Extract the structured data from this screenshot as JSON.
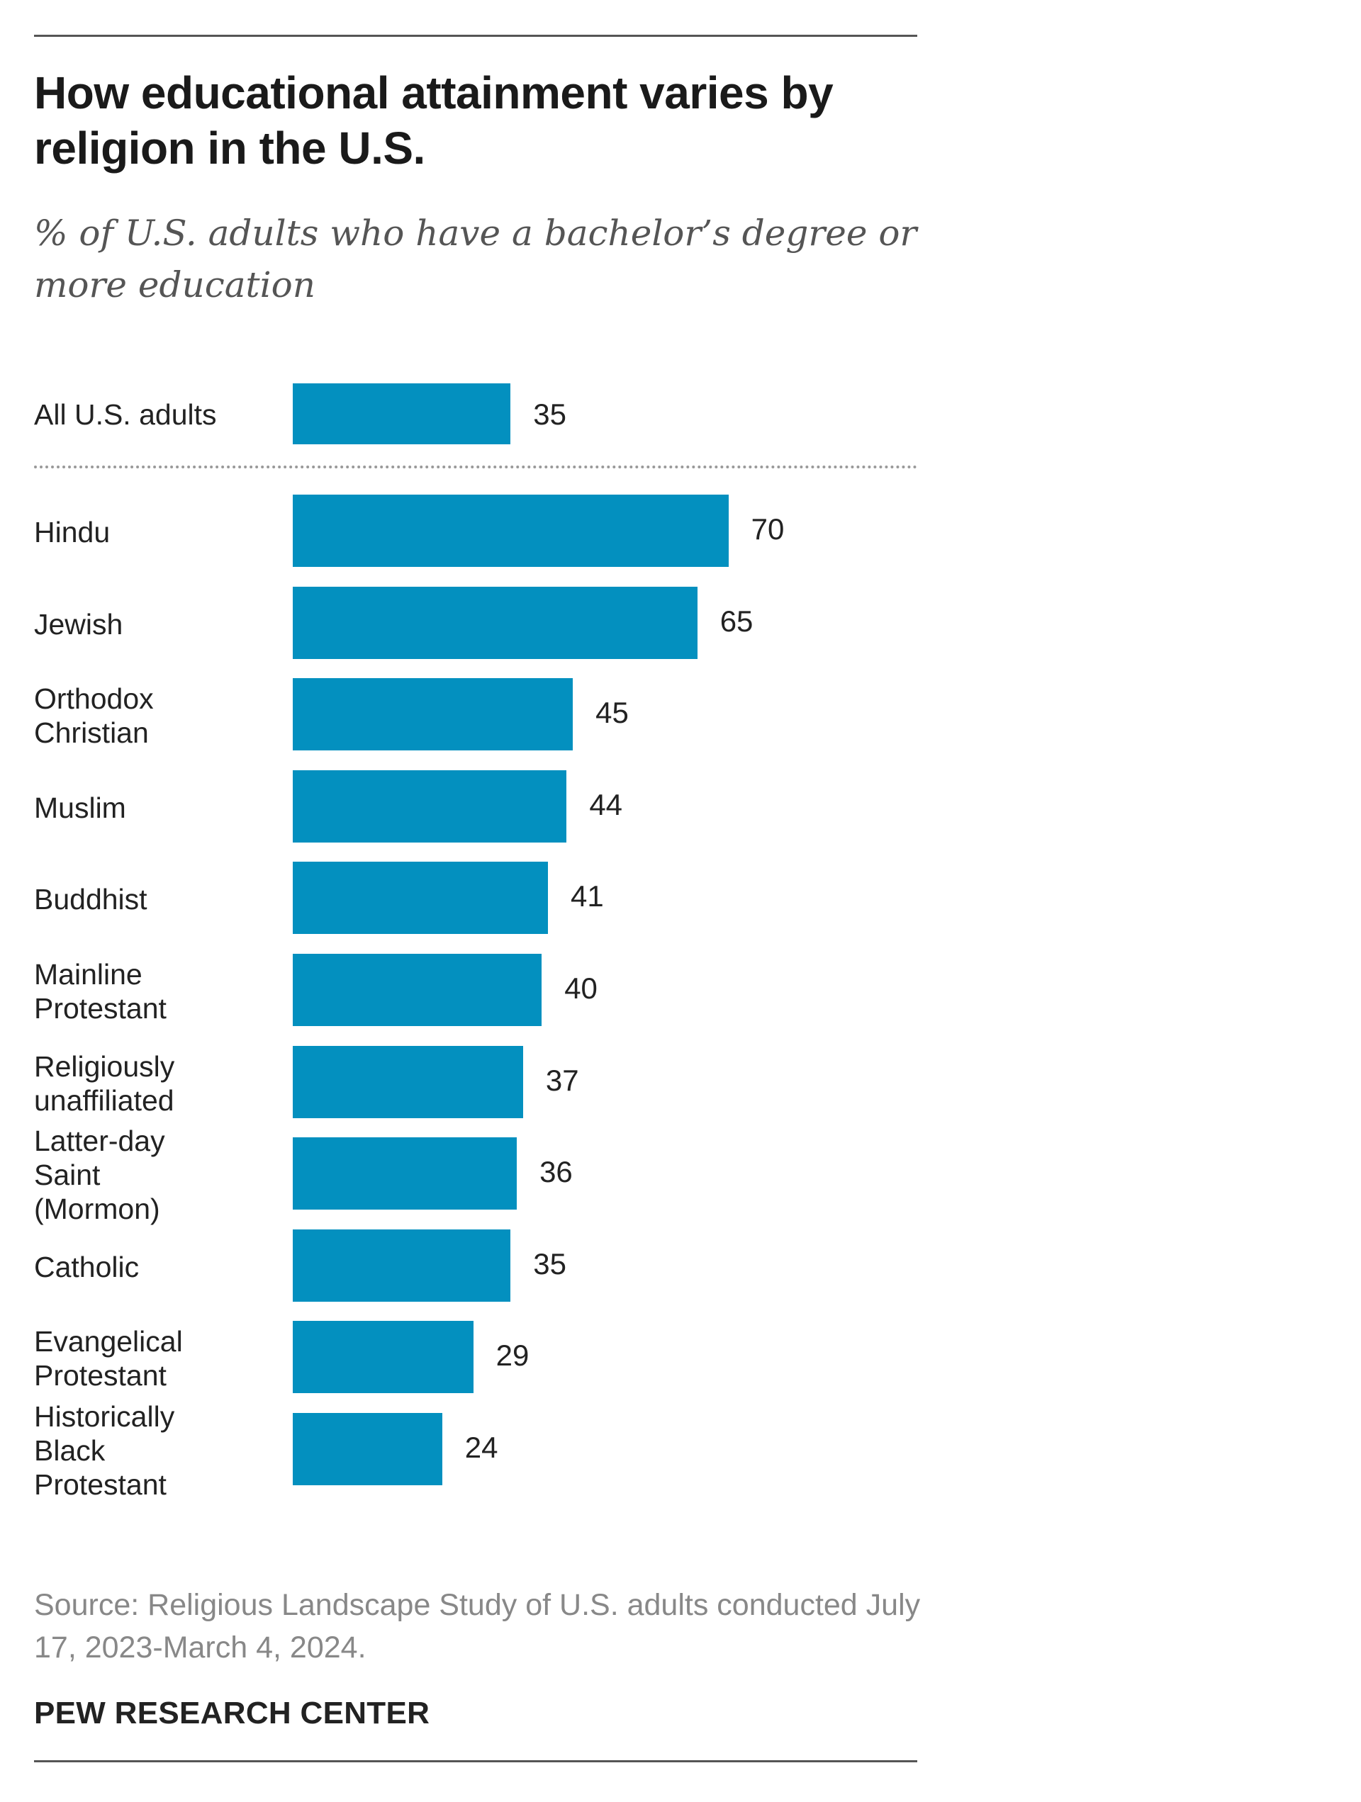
{
  "title": "How educational attainment varies by religion in the U.S.",
  "subtitle": "% of U.S. adults who have a bachelor’s degree or more education",
  "source": "Source: Religious Landscape Study of U.S. adults conducted July 17, 2023-March 4, 2024.",
  "brand": "PEW RESEARCH CENTER",
  "colors": {
    "bar": "#0390bf"
  },
  "chart_data": {
    "type": "bar",
    "orientation": "horizontal",
    "title": "How educational attainment varies by religion in the U.S.",
    "subtitle": "% of U.S. adults who have a bachelor’s degree or more education",
    "xlabel": "",
    "ylabel": "",
    "xlim": [
      0,
      70
    ],
    "grid": false,
    "reference": {
      "category": "All U.S. adults",
      "value": 35
    },
    "categories": [
      "Hindu",
      "Jewish",
      "Orthodox Christian",
      "Muslim",
      "Buddhist",
      "Mainline Protestant",
      "Religiously unaffiliated",
      "Latter-day Saint (Mormon)",
      "Catholic",
      "Evangelical Protestant",
      "Historically Black Protestant"
    ],
    "label_lines": [
      [
        "Hindu"
      ],
      [
        "Jewish"
      ],
      [
        "Orthodox",
        "Christian"
      ],
      [
        "Muslim"
      ],
      [
        "Buddhist"
      ],
      [
        "Mainline",
        "Protestant"
      ],
      [
        "Religiously",
        "unaffiliated"
      ],
      [
        "Latter-day",
        "Saint",
        "(Mormon)"
      ],
      [
        "Catholic"
      ],
      [
        "Evangelical",
        "Protestant"
      ],
      [
        "Historically",
        "Black",
        "Protestant"
      ]
    ],
    "values": [
      70,
      65,
      45,
      44,
      41,
      40,
      37,
      36,
      35,
      29,
      24
    ]
  }
}
